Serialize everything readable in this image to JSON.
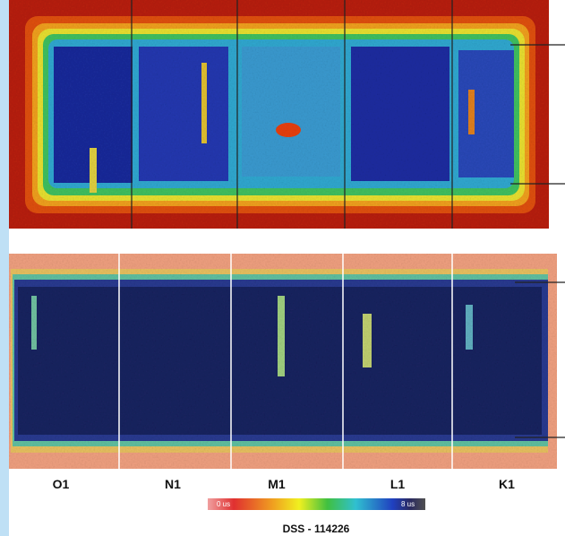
{
  "labels": [
    "O1",
    "N1",
    "M1",
    "L1",
    "K1"
  ],
  "scale": {
    "min": "0 us",
    "max": "8 us"
  },
  "caption": "DSS - 114226"
}
